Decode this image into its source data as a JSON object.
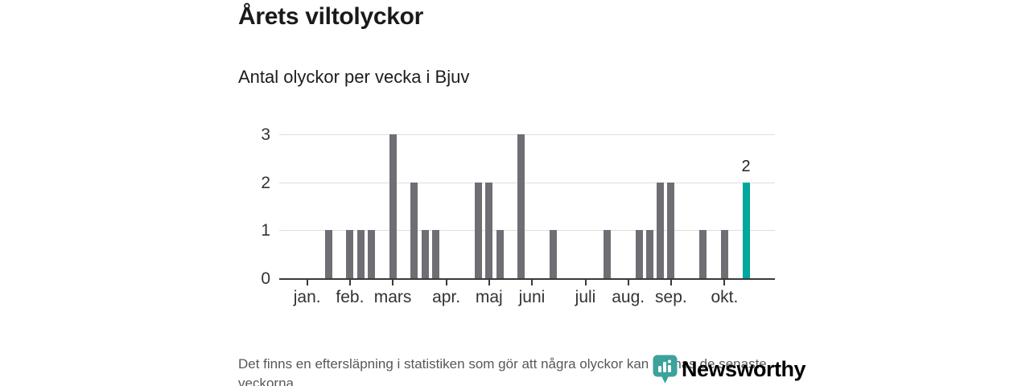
{
  "chart_data": {
    "type": "bar",
    "title": "Årets viltolyckor",
    "subtitle": "Antal olyckor per vecka i Bjuv",
    "x_unit": "week",
    "x_domain_weeks": [
      1,
      44
    ],
    "ylim": [
      0,
      3
    ],
    "y_ticks": [
      0,
      1,
      2,
      3
    ],
    "grid": "horizontal-light",
    "legend": "none",
    "month_ticks": [
      {
        "label": "jan.",
        "week": 1
      },
      {
        "label": "feb.",
        "week": 5
      },
      {
        "label": "mars",
        "week": 9
      },
      {
        "label": "apr.",
        "week": 14
      },
      {
        "label": "maj",
        "week": 18
      },
      {
        "label": "juni",
        "week": 22
      },
      {
        "label": "juli",
        "week": 27
      },
      {
        "label": "aug.",
        "week": 31
      },
      {
        "label": "sep.",
        "week": 35
      },
      {
        "label": "okt.",
        "week": 40
      }
    ],
    "bars": [
      {
        "week": 3,
        "value": 1
      },
      {
        "week": 5,
        "value": 1
      },
      {
        "week": 6,
        "value": 1
      },
      {
        "week": 7,
        "value": 1
      },
      {
        "week": 9,
        "value": 3
      },
      {
        "week": 11,
        "value": 2
      },
      {
        "week": 12,
        "value": 1
      },
      {
        "week": 13,
        "value": 1
      },
      {
        "week": 17,
        "value": 2
      },
      {
        "week": 18,
        "value": 2
      },
      {
        "week": 19,
        "value": 1
      },
      {
        "week": 21,
        "value": 3
      },
      {
        "week": 24,
        "value": 1
      },
      {
        "week": 29,
        "value": 1
      },
      {
        "week": 32,
        "value": 1
      },
      {
        "week": 33,
        "value": 1
      },
      {
        "week": 34,
        "value": 2
      },
      {
        "week": 35,
        "value": 2
      },
      {
        "week": 38,
        "value": 1
      },
      {
        "week": 40,
        "value": 1
      },
      {
        "week": 42,
        "value": 2,
        "highlight": true,
        "label": "2"
      }
    ]
  },
  "caption": "Det finns en eftersläpning i statistiken som gör att några olyckor kan saknas de senaste veckorna.",
  "logo": {
    "text": "Newsworthy",
    "icon": "newsworthy-pin-barchart-icon"
  },
  "colors": {
    "bar": "#6f6e74",
    "highlight": "#00a79c",
    "axis": "#3a3a3a",
    "grid": "#dedede",
    "axis_text": "#333333",
    "title_text": "#1a1a18",
    "caption_text": "#55585a",
    "logo_teal": "#3ba29c"
  }
}
